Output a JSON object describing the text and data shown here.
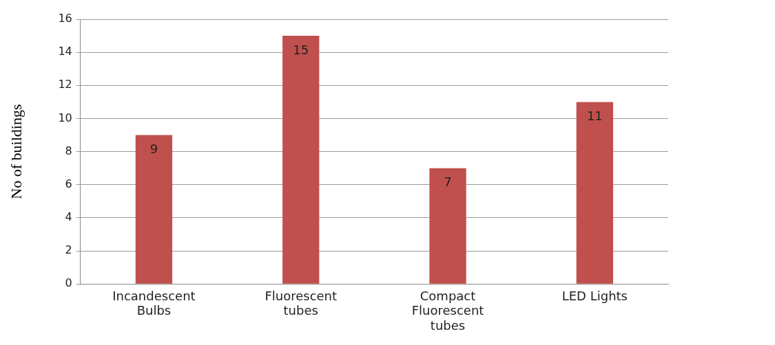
{
  "chart_data": {
    "type": "bar",
    "ylabel": "No of buildings",
    "categories": [
      "Incandescent Bulbs",
      "Fluorescent tubes",
      "Compact Fluorescent tubes",
      "LED Lights"
    ],
    "values": [
      9,
      15,
      7,
      11
    ],
    "color": "#c0504d",
    "ylim": [
      0,
      16
    ],
    "yticks": [
      0,
      2,
      4,
      6,
      8,
      10,
      12,
      14,
      16
    ],
    "grid": "y",
    "legend": false,
    "data_labels": true
  }
}
